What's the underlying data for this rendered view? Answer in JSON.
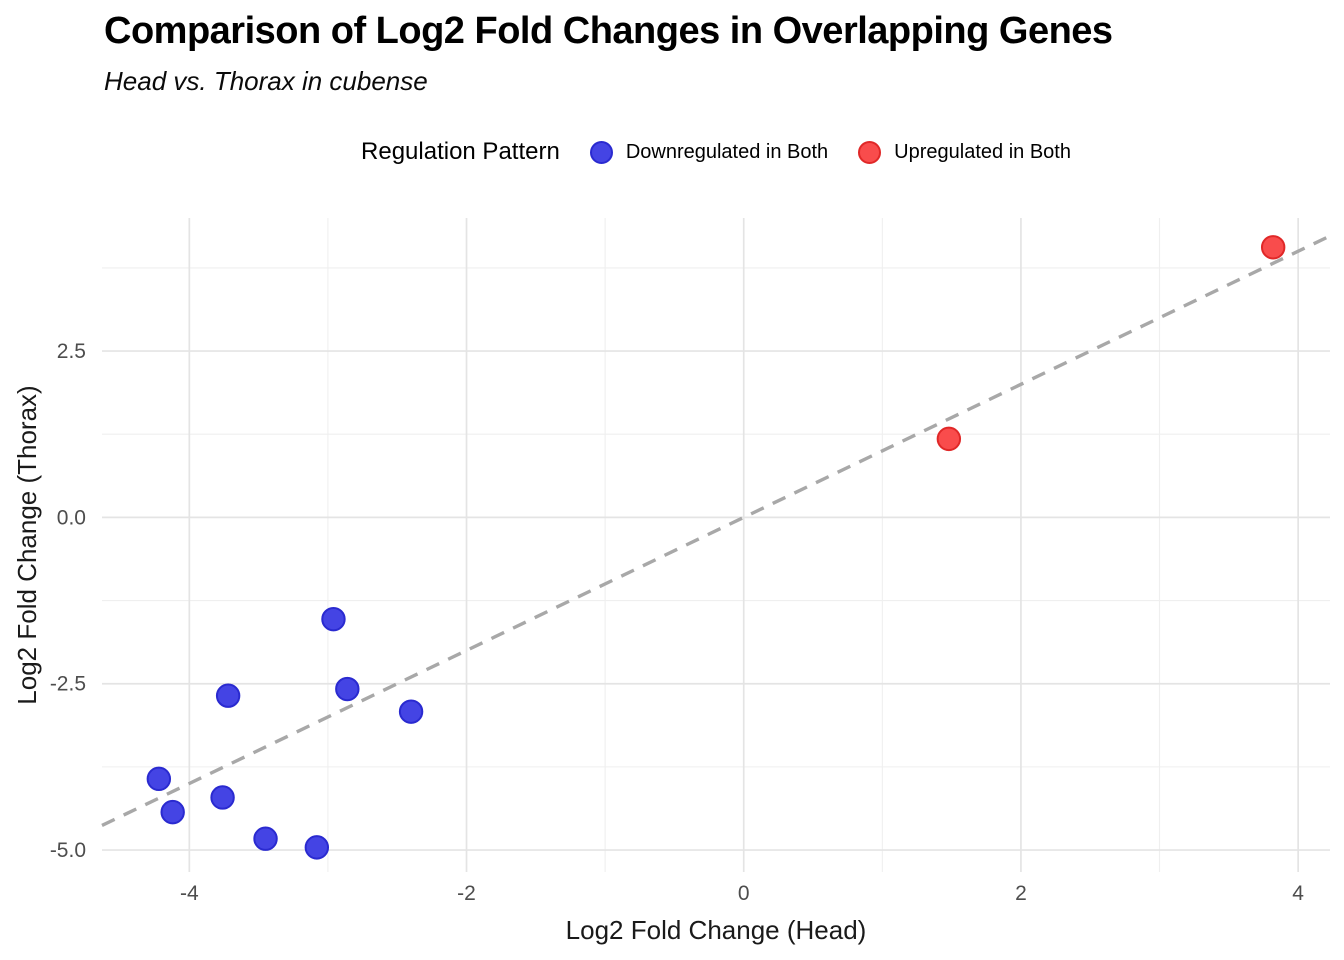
{
  "header": {
    "title": "Comparison of Log2 Fold Changes in Overlapping Genes",
    "subtitle": "Head vs. Thorax in cubense"
  },
  "legend": {
    "title": "Regulation Pattern",
    "position": "top-center",
    "items": [
      {
        "label": "Downregulated in Both",
        "fill": "#4444E4",
        "stroke": "#2A2AD0"
      },
      {
        "label": "Upregulated in Both",
        "fill": "#F94C4C",
        "stroke": "#E02828"
      }
    ]
  },
  "chart_data": {
    "type": "scatter",
    "title": "Comparison of Log2 Fold Changes in Overlapping Genes",
    "subtitle": "Head vs. Thorax in cubense",
    "xlabel": "Log2 Fold Change (Head)",
    "ylabel": "Log2 Fold Change (Thorax)",
    "xlim": [
      -4.63,
      4.23
    ],
    "ylim": [
      -5.33,
      4.5
    ],
    "x_ticks": [
      -4,
      -2,
      0,
      2,
      4
    ],
    "x_tick_labels": [
      "-4",
      "-2",
      "0",
      "2",
      "4"
    ],
    "x_minor_ticks": [
      -3,
      -1,
      1,
      3
    ],
    "y_ticks": [
      2.5,
      0,
      -2.5,
      -5
    ],
    "y_tick_labels": [
      "2.5",
      "0.0",
      "-2.5",
      "-5.0"
    ],
    "y_minor_ticks": [
      3.75,
      1.25,
      -1.25,
      -3.75
    ],
    "grid": "major and minor gridlines, white background",
    "legend_position": "top",
    "reference_line": {
      "kind": "identity y = x",
      "slope": 1,
      "intercept": 0,
      "style": "dashed",
      "color": "#A8A8A8"
    },
    "series": [
      {
        "name": "Downregulated in Both",
        "fill": "#4444E4",
        "stroke": "#2A2AD0",
        "points": [
          [
            -2.96,
            -1.53
          ],
          [
            -3.72,
            -2.68
          ],
          [
            -2.86,
            -2.58
          ],
          [
            -2.4,
            -2.92
          ],
          [
            -4.22,
            -3.93
          ],
          [
            -3.76,
            -4.21
          ],
          [
            -4.12,
            -4.43
          ],
          [
            -3.45,
            -4.83
          ],
          [
            -3.08,
            -4.96
          ]
        ]
      },
      {
        "name": "Upregulated in Both",
        "fill": "#F94C4C",
        "stroke": "#E02828",
        "points": [
          [
            1.48,
            1.18
          ],
          [
            3.82,
            4.06
          ]
        ]
      }
    ],
    "colors": {
      "grid_major": "#E4E4E4",
      "grid_minor": "#EFEFEF",
      "tick_label": "#4D4D4D",
      "axis_title": "#1A1A1A",
      "background": "#FFFFFF"
    }
  }
}
